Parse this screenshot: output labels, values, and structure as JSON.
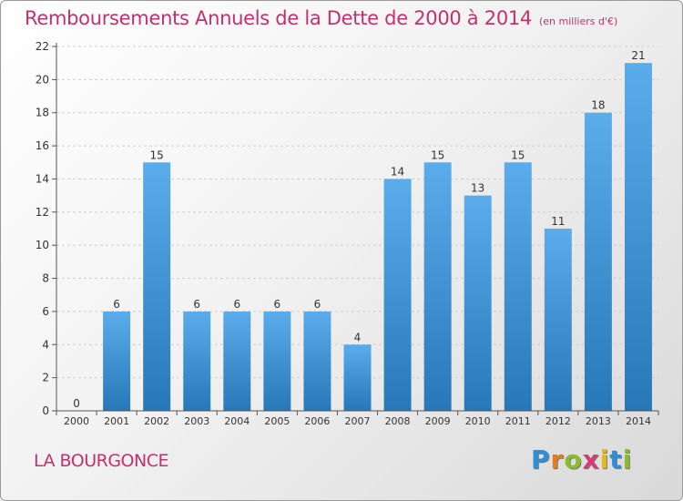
{
  "header": {
    "title": "Remboursements Annuels de la Dette de 2000 à 2014",
    "subtitle": "(en milliers d'€)"
  },
  "footer": {
    "commune": "LA BOURGONCE",
    "logo": {
      "letters": [
        "P",
        "r",
        "o",
        "x",
        "i",
        "t",
        "i"
      ],
      "colors": [
        "#2f8fd6",
        "#e57c1b",
        "#8bbd2b",
        "#d63c7a",
        "#e5b81b",
        "#2f8fd6",
        "#8bbd2b"
      ]
    }
  },
  "colors": {
    "bar_top": "#5aaceb",
    "bar_bottom": "#2678b8",
    "title": "#c3306e",
    "axis_text": "#333333",
    "grid": "#cfcfcf"
  },
  "chart_data": {
    "type": "bar",
    "categories": [
      "2000",
      "2001",
      "2002",
      "2003",
      "2004",
      "2005",
      "2006",
      "2007",
      "2008",
      "2009",
      "2010",
      "2011",
      "2012",
      "2013",
      "2014"
    ],
    "values": [
      0,
      6,
      15,
      6,
      6,
      6,
      6,
      4,
      14,
      15,
      13,
      15,
      11,
      18,
      21
    ],
    "data_labels": [
      "0",
      "6",
      "15",
      "6",
      "6",
      "6",
      "6",
      "4",
      "14",
      "15",
      "13",
      "15",
      "11",
      "18",
      "21"
    ],
    "yticks": [
      0,
      2,
      4,
      6,
      8,
      10,
      12,
      14,
      16,
      18,
      20,
      22
    ],
    "ylim": [
      0,
      22
    ],
    "grid": true,
    "legend": "none"
  }
}
